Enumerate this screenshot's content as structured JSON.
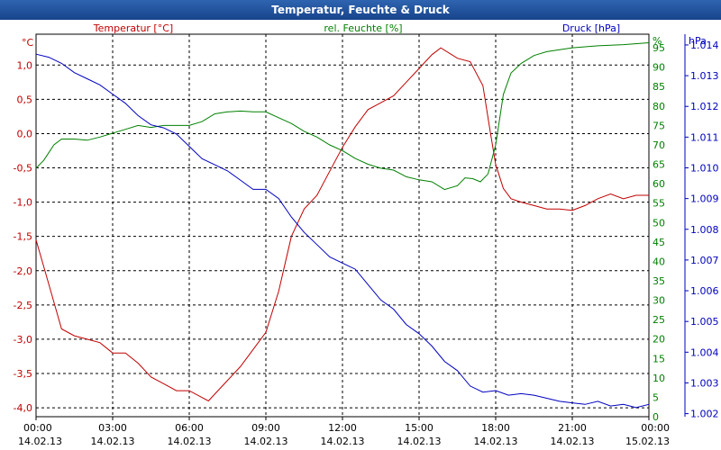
{
  "window": {
    "title": "Temperatur, Feuchte & Druck"
  },
  "chart_data": {
    "type": "line",
    "title": "Temperatur, Feuchte & Druck",
    "grid": true,
    "x_ticks": [
      {
        "time": "00:00",
        "date": "14.02.13",
        "h": 0
      },
      {
        "time": "03:00",
        "date": "14.02.13",
        "h": 3
      },
      {
        "time": "06:00",
        "date": "14.02.13",
        "h": 6
      },
      {
        "time": "09:00",
        "date": "14.02.13",
        "h": 9
      },
      {
        "time": "12:00",
        "date": "14.02.13",
        "h": 12
      },
      {
        "time": "15:00",
        "date": "14.02.13",
        "h": 15
      },
      {
        "time": "18:00",
        "date": "14.02.13",
        "h": 18
      },
      {
        "time": "21:00",
        "date": "14.02.13",
        "h": 21
      },
      {
        "time": "00:00",
        "date": "15.02.13",
        "h": 24
      }
    ],
    "xlim": [
      0,
      24
    ],
    "axes": {
      "temperature": {
        "label": "Temperatur [°C]",
        "unit": "°C",
        "color": "#c00000",
        "ylim": [
          -4.13,
          1.45
        ],
        "ticks": [
          "1,0",
          "0,5",
          "0,0",
          "-0,5",
          "-1,0",
          "-1,5",
          "-2,0",
          "-2,5",
          "-3,0",
          "-3,5",
          "-4,0"
        ],
        "tick_values": [
          1.0,
          0.5,
          0.0,
          -0.5,
          -1.0,
          -1.5,
          -2.0,
          -2.5,
          -3.0,
          -3.5,
          -4.0
        ]
      },
      "humidity": {
        "label": "rel. Feuchte [%]",
        "unit": "%",
        "color": "#008000",
        "ylim": [
          0,
          98.5
        ],
        "ticks": [
          "95",
          "90",
          "85",
          "80",
          "75",
          "70",
          "65",
          "60",
          "55",
          "50",
          "45",
          "40",
          "35",
          "30",
          "25",
          "20",
          "15",
          "10",
          "5",
          "0"
        ],
        "tick_values": [
          95,
          90,
          85,
          80,
          75,
          70,
          65,
          60,
          55,
          50,
          45,
          40,
          35,
          30,
          25,
          20,
          15,
          10,
          5,
          0
        ]
      },
      "pressure": {
        "label": "Druck [hPa]",
        "unit": "hPa",
        "color": "#0000c0",
        "ylim": [
          1.0019,
          1.01435
        ],
        "ticks": [
          "1.014",
          "1.013",
          "1.012",
          "1.011",
          "1.010",
          "1.009",
          "1.008",
          "1.007",
          "1.006",
          "1.005",
          "1.004",
          "1.003",
          "1.002"
        ],
        "tick_values": [
          1.014,
          1.013,
          1.012,
          1.011,
          1.01,
          1.009,
          1.008,
          1.007,
          1.006,
          1.005,
          1.004,
          1.003,
          1.002
        ]
      }
    },
    "series": [
      {
        "name": "Temperatur [°C]",
        "axis": "temperature",
        "color": "#c00000",
        "x": [
          0,
          0.5,
          1,
          1.5,
          2,
          2.5,
          3,
          3.5,
          4,
          4.5,
          5,
          5.5,
          6,
          6.5,
          6.75,
          7,
          7.5,
          8,
          8.5,
          9,
          9.5,
          10,
          10.5,
          11,
          11.5,
          12,
          12.5,
          13,
          13.5,
          14,
          14.5,
          15,
          15.5,
          15.85,
          16.5,
          17,
          17.5,
          17.8,
          18,
          18.3,
          18.6,
          19,
          19.5,
          20,
          20.5,
          21,
          21.5,
          22,
          22.5,
          23,
          23.5,
          24
        ],
        "values": [
          -1.55,
          -2.2,
          -2.85,
          -2.95,
          -3.0,
          -3.05,
          -3.2,
          -3.2,
          -3.35,
          -3.55,
          -3.65,
          -3.75,
          -3.75,
          -3.85,
          -3.9,
          -3.8,
          -3.6,
          -3.4,
          -3.15,
          -2.9,
          -2.3,
          -1.5,
          -1.1,
          -0.9,
          -0.55,
          -0.2,
          0.1,
          0.35,
          0.45,
          0.55,
          0.75,
          0.95,
          1.15,
          1.25,
          1.1,
          1.05,
          0.7,
          0.0,
          -0.45,
          -0.8,
          -0.95,
          -1.0,
          -1.05,
          -1.1,
          -1.1,
          -1.12,
          -1.05,
          -0.95,
          -0.88,
          -0.95,
          -0.9,
          -0.9
        ]
      },
      {
        "name": "rel. Feuchte [%]",
        "axis": "humidity",
        "color": "#008000",
        "x": [
          0,
          0.3,
          0.7,
          1,
          1.5,
          2,
          2.5,
          3,
          3.5,
          4,
          4.5,
          5,
          5.5,
          6,
          6.5,
          7,
          7.5,
          8,
          8.5,
          9,
          9.5,
          10,
          10.5,
          11,
          11.5,
          12,
          12.5,
          13,
          13.5,
          14,
          14.5,
          15,
          15.5,
          16,
          16.5,
          16.8,
          17.1,
          17.4,
          17.7,
          18,
          18.3,
          18.6,
          19,
          19.5,
          20,
          21,
          22,
          23,
          24
        ],
        "values": [
          64,
          66,
          70,
          71.5,
          71.5,
          71.2,
          72,
          73,
          74,
          75,
          74.5,
          75,
          75,
          75,
          76,
          78,
          78.5,
          78.7,
          78.5,
          78.5,
          77,
          75.5,
          73.5,
          72,
          70,
          68.5,
          66.5,
          65,
          64,
          63.5,
          61.8,
          61,
          60.5,
          58.5,
          59.5,
          61.5,
          61.3,
          60.5,
          62.5,
          70,
          83,
          88.5,
          91,
          93,
          94,
          95,
          95.5,
          95.8,
          96.3
        ]
      },
      {
        "name": "Druck [hPa]",
        "axis": "pressure",
        "color": "#0000c0",
        "x": [
          0,
          0.5,
          1,
          1.5,
          2,
          2.5,
          3,
          3.5,
          4,
          4.5,
          5,
          5.5,
          6,
          6.5,
          7,
          7.5,
          8,
          8.5,
          9,
          9.5,
          10,
          10.5,
          11,
          11.5,
          12,
          12.5,
          13,
          13.5,
          14,
          14.5,
          15,
          15.5,
          16,
          16.5,
          17,
          17.5,
          18,
          18.5,
          19,
          19.5,
          20,
          20.5,
          21,
          21.5,
          22,
          22.5,
          23,
          23.5,
          24
        ],
        "values": [
          1.0137,
          1.0136,
          1.0134,
          1.0131,
          1.0129,
          1.0127,
          1.0124,
          1.0121,
          1.0117,
          1.0114,
          1.0113,
          1.0111,
          1.0107,
          1.0103,
          1.0101,
          1.0099,
          1.0096,
          1.0093,
          1.0093,
          1.009,
          1.0084,
          1.0079,
          1.0075,
          1.0071,
          1.0069,
          1.0067,
          1.0062,
          1.0057,
          1.0054,
          1.0049,
          1.0046,
          1.0042,
          1.0037,
          1.0034,
          1.0029,
          1.0027,
          1.00275,
          1.0026,
          1.00265,
          1.0026,
          1.0025,
          1.0024,
          1.00235,
          1.0023,
          1.0024,
          1.00225,
          1.0023,
          1.0022,
          1.0023
        ]
      }
    ]
  }
}
